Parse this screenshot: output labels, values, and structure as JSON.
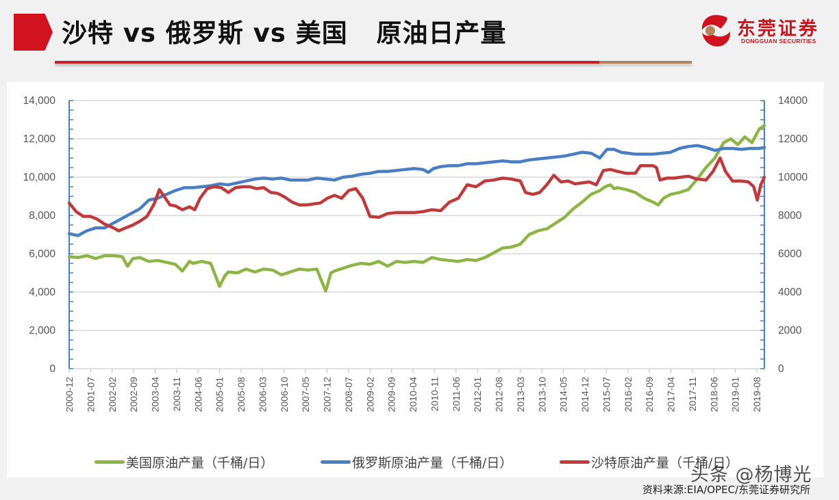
{
  "header": {
    "title": "沙特 vs 俄罗斯 vs 美国   原油日产量",
    "logo_cn": "东莞证券",
    "logo_en": "DONGGUAN SECURITIES"
  },
  "colors": {
    "accent_red": "#d0131f",
    "rule_gold": "#b5835a",
    "us": "#8db545",
    "russia": "#4a7ec2",
    "saudi": "#c0393b",
    "axis": "#4a7ec2",
    "grid": "#d9d9d9"
  },
  "source": "资料来源:EIA/OPEC/东莞证券研究所",
  "watermark": "头条 @杨博光",
  "chart_data": {
    "type": "line",
    "title": "沙特 vs 俄罗斯 vs 美国 原油日产量",
    "xlabel": "",
    "ylabel": "千桶/日",
    "ylim": [
      0,
      14000
    ],
    "y_ticks_left": [
      "0",
      "2,000",
      "4,000",
      "6,000",
      "8,000",
      "10,000",
      "12,000",
      "14,000"
    ],
    "y_ticks_right": [
      "0",
      "2000",
      "4000",
      "6000",
      "8000",
      "10000",
      "12000",
      "14000"
    ],
    "grid": true,
    "legend_position": "bottom",
    "categories": [
      "2000-12",
      "2001-07",
      "2002-02",
      "2002-09",
      "2003-04",
      "2003-11",
      "2004-06",
      "2005-01",
      "2005-08",
      "2006-03",
      "2006-10",
      "2007-05",
      "2007-12",
      "2008-07",
      "2009-02",
      "2009-09",
      "2010-04",
      "2010-11",
      "2011-06",
      "2012-01",
      "2012-08",
      "2013-03",
      "2013-10",
      "2014-05",
      "2014-12",
      "2015-07",
      "2016-02",
      "2016-09",
      "2017-04",
      "2017-11",
      "2018-06",
      "2019-01",
      "2019-08"
    ],
    "series": [
      {
        "name": "美国原油产量（千桶/日）",
        "color": "#8db545",
        "points": [
          [
            0,
            5850
          ],
          [
            0.5,
            5800
          ],
          [
            1,
            5900
          ],
          [
            1.5,
            5750
          ],
          [
            2,
            5900
          ],
          [
            2.5,
            5900
          ],
          [
            3,
            5850
          ],
          [
            3.3,
            5350
          ],
          [
            3.6,
            5750
          ],
          [
            4,
            5800
          ],
          [
            4.5,
            5600
          ],
          [
            5,
            5650
          ],
          [
            5.5,
            5550
          ],
          [
            6,
            5450
          ],
          [
            6.4,
            5100
          ],
          [
            6.8,
            5600
          ],
          [
            7,
            5500
          ],
          [
            7.5,
            5600
          ],
          [
            8,
            5500
          ],
          [
            8.5,
            4300
          ],
          [
            8.8,
            4850
          ],
          [
            9,
            5050
          ],
          [
            9.5,
            5000
          ],
          [
            10,
            5200
          ],
          [
            10.5,
            5050
          ],
          [
            11,
            5200
          ],
          [
            11.5,
            5150
          ],
          [
            12,
            4900
          ],
          [
            12.5,
            5050
          ],
          [
            13,
            5200
          ],
          [
            13.5,
            5150
          ],
          [
            14,
            5200
          ],
          [
            14.5,
            4050
          ],
          [
            14.8,
            5000
          ],
          [
            15,
            5100
          ],
          [
            15.5,
            5250
          ],
          [
            16,
            5400
          ],
          [
            16.5,
            5500
          ],
          [
            17,
            5450
          ],
          [
            17.5,
            5600
          ],
          [
            18,
            5350
          ],
          [
            18.5,
            5600
          ],
          [
            19,
            5550
          ],
          [
            19.5,
            5600
          ],
          [
            20,
            5550
          ],
          [
            20.5,
            5800
          ],
          [
            21,
            5700
          ],
          [
            21.5,
            5650
          ],
          [
            22,
            5600
          ],
          [
            22.5,
            5700
          ],
          [
            23,
            5650
          ],
          [
            23.5,
            5800
          ],
          [
            24,
            6050
          ],
          [
            24.5,
            6300
          ],
          [
            25,
            6350
          ],
          [
            25.5,
            6500
          ],
          [
            26,
            7000
          ],
          [
            26.5,
            7200
          ],
          [
            27,
            7300
          ],
          [
            27.5,
            7600
          ],
          [
            28,
            7900
          ],
          [
            28.5,
            8350
          ],
          [
            29,
            8700
          ],
          [
            29.5,
            9100
          ],
          [
            30,
            9300
          ],
          [
            30.3,
            9500
          ],
          [
            30.6,
            9600
          ],
          [
            30.8,
            9400
          ],
          [
            31,
            9450
          ],
          [
            31.5,
            9350
          ],
          [
            32,
            9200
          ],
          [
            32.5,
            8900
          ],
          [
            33,
            8700
          ],
          [
            33.3,
            8550
          ],
          [
            33.6,
            8900
          ],
          [
            34,
            9100
          ],
          [
            34.5,
            9200
          ],
          [
            35,
            9350
          ],
          [
            35.5,
            9900
          ],
          [
            36,
            10500
          ],
          [
            36.5,
            11000
          ],
          [
            37,
            11800
          ],
          [
            37.4,
            12000
          ],
          [
            37.8,
            11700
          ],
          [
            38.2,
            12100
          ],
          [
            38.6,
            11800
          ],
          [
            39,
            12500
          ],
          [
            39.3,
            12700
          ]
        ]
      },
      {
        "name": "俄罗斯原油产量（千桶/日）",
        "color": "#4a7ec2",
        "points": [
          [
            0,
            7050
          ],
          [
            0.5,
            6950
          ],
          [
            1,
            7200
          ],
          [
            1.5,
            7350
          ],
          [
            2,
            7350
          ],
          [
            2.5,
            7600
          ],
          [
            3,
            7850
          ],
          [
            3.5,
            8100
          ],
          [
            4,
            8350
          ],
          [
            4.5,
            8800
          ],
          [
            5,
            8900
          ],
          [
            5.5,
            9100
          ],
          [
            6,
            9300
          ],
          [
            6.5,
            9450
          ],
          [
            7,
            9450
          ],
          [
            7.5,
            9500
          ],
          [
            8,
            9550
          ],
          [
            8.5,
            9650
          ],
          [
            9,
            9600
          ],
          [
            9.5,
            9700
          ],
          [
            10,
            9800
          ],
          [
            10.5,
            9900
          ],
          [
            11,
            9950
          ],
          [
            11.5,
            9900
          ],
          [
            12,
            9950
          ],
          [
            12.5,
            9850
          ],
          [
            13,
            9850
          ],
          [
            13.5,
            9850
          ],
          [
            14,
            9950
          ],
          [
            14.5,
            9900
          ],
          [
            15,
            9850
          ],
          [
            15.5,
            10000
          ],
          [
            16,
            10050
          ],
          [
            16.5,
            10150
          ],
          [
            17,
            10200
          ],
          [
            17.5,
            10300
          ],
          [
            18,
            10300
          ],
          [
            18.5,
            10350
          ],
          [
            19,
            10400
          ],
          [
            19.5,
            10450
          ],
          [
            20,
            10400
          ],
          [
            20.3,
            10250
          ],
          [
            20.6,
            10450
          ],
          [
            21,
            10550
          ],
          [
            21.5,
            10600
          ],
          [
            22,
            10600
          ],
          [
            22.5,
            10700
          ],
          [
            23,
            10700
          ],
          [
            23.5,
            10750
          ],
          [
            24,
            10800
          ],
          [
            24.5,
            10850
          ],
          [
            25,
            10800
          ],
          [
            25.5,
            10800
          ],
          [
            26,
            10900
          ],
          [
            26.5,
            10950
          ],
          [
            27,
            11000
          ],
          [
            27.5,
            11050
          ],
          [
            28,
            11100
          ],
          [
            28.5,
            11200
          ],
          [
            29,
            11300
          ],
          [
            29.5,
            11250
          ],
          [
            30,
            11000
          ],
          [
            30.4,
            11450
          ],
          [
            30.8,
            11450
          ],
          [
            31.2,
            11300
          ],
          [
            31.6,
            11250
          ],
          [
            32,
            11200
          ],
          [
            32.5,
            11200
          ],
          [
            33,
            11200
          ],
          [
            33.5,
            11250
          ],
          [
            34,
            11300
          ],
          [
            34.5,
            11500
          ],
          [
            35,
            11600
          ],
          [
            35.5,
            11650
          ],
          [
            36,
            11550
          ],
          [
            36.5,
            11400
          ],
          [
            37,
            11500
          ],
          [
            37.5,
            11500
          ],
          [
            38,
            11450
          ],
          [
            38.5,
            11500
          ],
          [
            39,
            11500
          ],
          [
            39.3,
            11550
          ]
        ]
      },
      {
        "name": "沙特原油产量（千桶/日）",
        "color": "#c0393b",
        "points": [
          [
            0,
            8650
          ],
          [
            0.4,
            8200
          ],
          [
            0.8,
            7950
          ],
          [
            1.2,
            7950
          ],
          [
            1.6,
            7800
          ],
          [
            2,
            7550
          ],
          [
            2.5,
            7350
          ],
          [
            2.8,
            7200
          ],
          [
            3.2,
            7350
          ],
          [
            3.6,
            7500
          ],
          [
            4,
            7700
          ],
          [
            4.4,
            7950
          ],
          [
            4.8,
            8600
          ],
          [
            5.1,
            9350
          ],
          [
            5.4,
            8950
          ],
          [
            5.7,
            8550
          ],
          [
            6,
            8500
          ],
          [
            6.4,
            8300
          ],
          [
            6.8,
            8450
          ],
          [
            7.1,
            8300
          ],
          [
            7.4,
            8900
          ],
          [
            7.8,
            9400
          ],
          [
            8.2,
            9500
          ],
          [
            8.6,
            9450
          ],
          [
            9,
            9200
          ],
          [
            9.4,
            9450
          ],
          [
            9.8,
            9500
          ],
          [
            10.2,
            9500
          ],
          [
            10.6,
            9400
          ],
          [
            11,
            9450
          ],
          [
            11.4,
            9200
          ],
          [
            11.8,
            9150
          ],
          [
            12.2,
            8950
          ],
          [
            12.6,
            8700
          ],
          [
            13,
            8550
          ],
          [
            13.4,
            8550
          ],
          [
            13.8,
            8600
          ],
          [
            14.2,
            8650
          ],
          [
            14.6,
            8900
          ],
          [
            15,
            9050
          ],
          [
            15.4,
            8900
          ],
          [
            15.8,
            9300
          ],
          [
            16.2,
            9400
          ],
          [
            16.6,
            8900
          ],
          [
            17,
            7950
          ],
          [
            17.5,
            7900
          ],
          [
            18,
            8100
          ],
          [
            18.5,
            8150
          ],
          [
            19,
            8150
          ],
          [
            19.5,
            8150
          ],
          [
            20,
            8200
          ],
          [
            20.5,
            8300
          ],
          [
            21,
            8250
          ],
          [
            21.5,
            8700
          ],
          [
            22,
            8900
          ],
          [
            22.5,
            9600
          ],
          [
            23,
            9500
          ],
          [
            23.5,
            9800
          ],
          [
            24,
            9850
          ],
          [
            24.5,
            9950
          ],
          [
            25,
            9900
          ],
          [
            25.5,
            9800
          ],
          [
            25.8,
            9200
          ],
          [
            26.2,
            9100
          ],
          [
            26.6,
            9200
          ],
          [
            27,
            9600
          ],
          [
            27.4,
            10100
          ],
          [
            27.8,
            9750
          ],
          [
            28.2,
            9800
          ],
          [
            28.6,
            9650
          ],
          [
            29,
            9700
          ],
          [
            29.4,
            9750
          ],
          [
            29.8,
            9600
          ],
          [
            30.2,
            10350
          ],
          [
            30.6,
            10400
          ],
          [
            31,
            10300
          ],
          [
            31.5,
            10200
          ],
          [
            32,
            10200
          ],
          [
            32.3,
            10600
          ],
          [
            32.7,
            10600
          ],
          [
            33,
            10600
          ],
          [
            33.2,
            10500
          ],
          [
            33.4,
            9850
          ],
          [
            33.8,
            9950
          ],
          [
            34.2,
            9950
          ],
          [
            34.6,
            10000
          ],
          [
            35,
            10050
          ],
          [
            35.5,
            9900
          ],
          [
            36,
            9850
          ],
          [
            36.4,
            10300
          ],
          [
            36.8,
            11000
          ],
          [
            37.1,
            10300
          ],
          [
            37.5,
            9800
          ],
          [
            38,
            9800
          ],
          [
            38.4,
            9750
          ],
          [
            38.7,
            9500
          ],
          [
            38.9,
            8800
          ],
          [
            39.1,
            9600
          ],
          [
            39.3,
            10000
          ]
        ]
      }
    ]
  }
}
